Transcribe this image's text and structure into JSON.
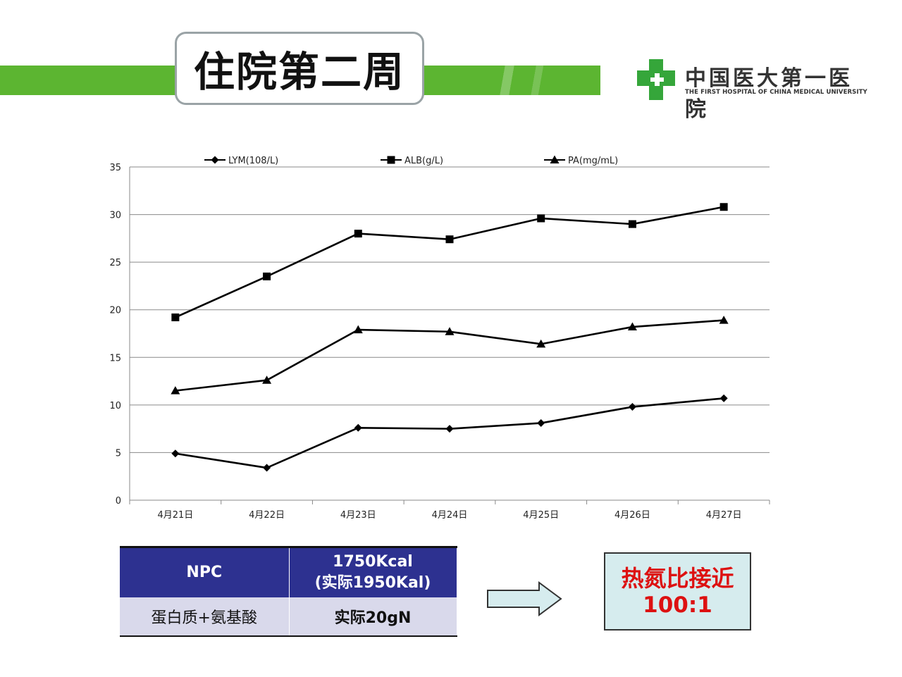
{
  "header": {
    "title": "住院第二周",
    "accent_color": "#5cb531"
  },
  "logo": {
    "name_cn": "中国医大第一医院",
    "name_en": "THE FIRST HOSPITAL OF CHINA MEDICAL UNIVERSITY",
    "icon": "green-cross-icon"
  },
  "chart_data": {
    "type": "line",
    "categories": [
      "4月21日",
      "4月22日",
      "4月23日",
      "4月24日",
      "4月25日",
      "4月26日",
      "4月27日"
    ],
    "ylim": [
      0,
      35
    ],
    "yticks": [
      0,
      5,
      10,
      15,
      20,
      25,
      30,
      35
    ],
    "grid": true,
    "legend_position": "top",
    "series": [
      {
        "name": "LYM(108/L)",
        "marker": "diamond",
        "values": [
          4.9,
          3.4,
          7.6,
          7.5,
          8.1,
          9.8,
          10.7
        ]
      },
      {
        "name": "ALB(g/L)",
        "marker": "square",
        "values": [
          19.2,
          23.5,
          28.0,
          27.4,
          29.6,
          29.0,
          30.8
        ]
      },
      {
        "name": "PA(mg/mL)",
        "marker": "triangle",
        "values": [
          11.5,
          12.6,
          17.9,
          17.7,
          16.4,
          18.2,
          18.9
        ]
      }
    ]
  },
  "table": {
    "header": [
      "NPC",
      "1750Kcal",
      "(实际1950Kal)"
    ],
    "row": [
      "蛋白质+氨基酸",
      "实际20gN"
    ],
    "header_color": "#2d3190",
    "row_color": "#d9d9eb"
  },
  "arrow_icon": "right-arrow-icon",
  "ratio": {
    "line1": "热氮比接近",
    "line2": "100:1",
    "text_color": "#dd1111",
    "bg_color": "#d6ecee"
  }
}
